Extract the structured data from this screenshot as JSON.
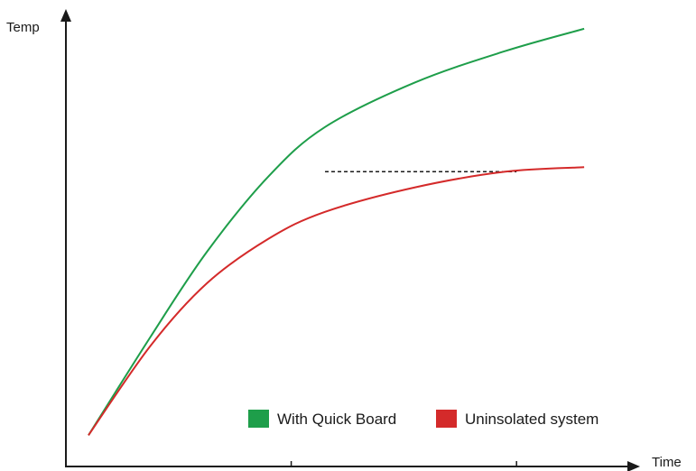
{
  "chart_data": {
    "type": "line",
    "title": "",
    "xlabel": "Time",
    "ylabel": "Temp",
    "xlim": [
      0,
      10
    ],
    "ylim": [
      0,
      10
    ],
    "x_ticks": [
      4,
      8
    ],
    "x_tick_labels": [
      "",
      ""
    ],
    "grid": false,
    "legend_position": "bottom-right",
    "series": [
      {
        "name": "With Quick Board",
        "color": "#1e9e4a",
        "points": [
          [
            0.4,
            0.7
          ],
          [
            1.5,
            2.9
          ],
          [
            2.5,
            4.8
          ],
          [
            3.6,
            6.5
          ],
          [
            4.6,
            7.6
          ],
          [
            6.2,
            8.6
          ],
          [
            7.8,
            9.3
          ],
          [
            9.2,
            9.8
          ]
        ]
      },
      {
        "name": "Uninsolated system",
        "color": "#d42a2a",
        "points": [
          [
            0.4,
            0.7
          ],
          [
            1.5,
            2.7
          ],
          [
            2.5,
            4.1
          ],
          [
            3.6,
            5.1
          ],
          [
            4.6,
            5.7
          ],
          [
            6.2,
            6.25
          ],
          [
            7.8,
            6.6
          ],
          [
            9.2,
            6.7
          ]
        ]
      }
    ],
    "reference_line": {
      "style": "dashed",
      "color": "#1a1a1a",
      "from": [
        4.6,
        6.6
      ],
      "to": [
        8.0,
        6.6
      ]
    }
  }
}
